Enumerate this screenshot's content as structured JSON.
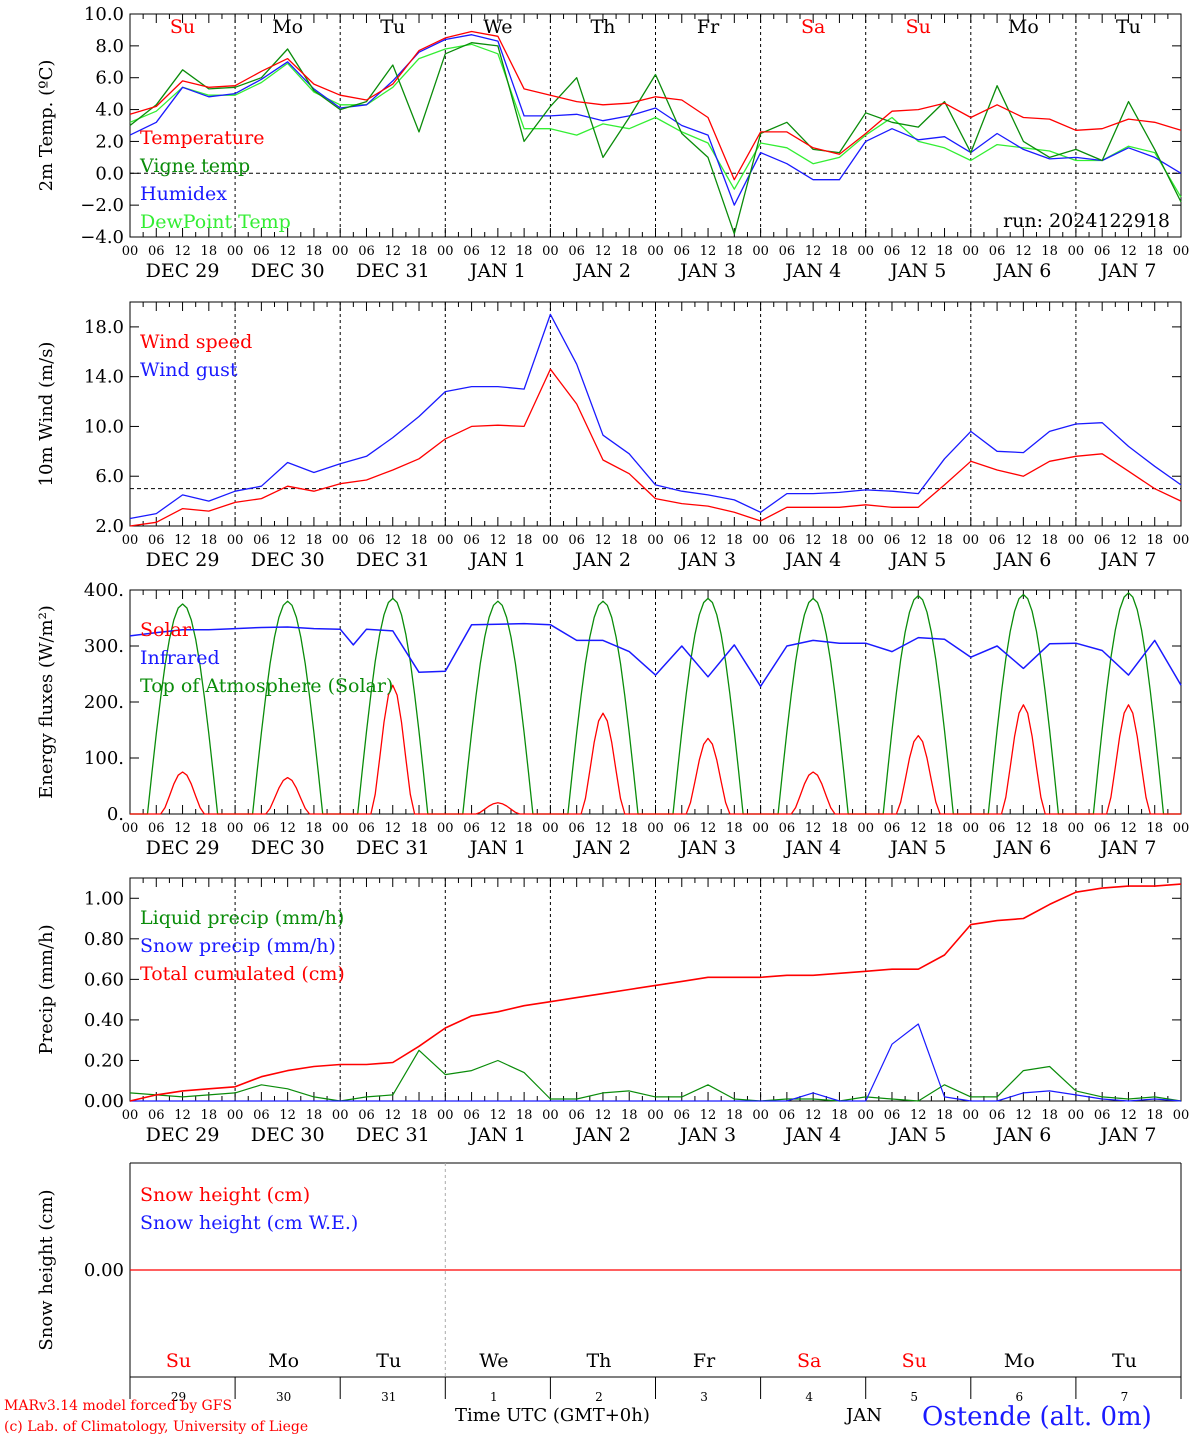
{
  "colors": {
    "red": "#ff0000",
    "green": "#0a8c0a",
    "blue": "#1a1aff",
    "lightgreen": "#33ee33",
    "grey": "#aaaaaa",
    "black": "#000000"
  },
  "day_labels": [
    "Su",
    "Mo",
    "Tu",
    "We",
    "Th",
    "Fr",
    "Sa",
    "Su",
    "Mo",
    "Tu"
  ],
  "weekend_flags": [
    true,
    false,
    false,
    false,
    false,
    false,
    true,
    true,
    false,
    false
  ],
  "date_labels": [
    "DEC 29",
    "DEC 30",
    "DEC 31",
    "JAN  1",
    "JAN  2",
    "JAN  3",
    "JAN  4",
    "JAN  5",
    "JAN  6",
    "JAN  7"
  ],
  "hour_labels": [
    "00",
    "06",
    "12",
    "18"
  ],
  "bottom_day_numbers": [
    "29",
    "30",
    "31",
    "1",
    "2",
    "3",
    "4",
    "5",
    "6",
    "7"
  ],
  "footer": {
    "credit_line1": "MARv3.14 model forced by GFS",
    "credit_line2": "(c) Lab. of Climatology, University of Liege",
    "xaxis_title": "Time UTC (GMT+0h)",
    "month": "JAN",
    "station": "Ostende (alt. 0m)"
  },
  "chart_data": [
    {
      "type": "line",
      "ylabel": "2m Temp. (ºC)",
      "ylim": [
        -4,
        10
      ],
      "yticks": [
        "10.0",
        "8.0",
        "6.0",
        "4.0",
        "2.0",
        "0.0",
        "−2.0",
        "−4.0"
      ],
      "annotation": "run: 2024122918",
      "x_hours": [
        0,
        6,
        12,
        18,
        24,
        30,
        36,
        42,
        48,
        54,
        60,
        66,
        72,
        78,
        84,
        90,
        96,
        102,
        108,
        114,
        120,
        126,
        132,
        138,
        144,
        150,
        156,
        162,
        168,
        174,
        180,
        186,
        192,
        198,
        204,
        210,
        216,
        222,
        228,
        234,
        240
      ],
      "series": [
        {
          "name": "Temperature",
          "color": "red",
          "values": [
            3.7,
            4.2,
            5.8,
            5.4,
            5.5,
            6.4,
            7.2,
            5.6,
            4.9,
            4.6,
            5.6,
            7.7,
            8.5,
            8.9,
            8.6,
            5.3,
            4.9,
            4.5,
            4.3,
            4.4,
            4.8,
            4.6,
            3.5,
            -0.4,
            2.6,
            2.6,
            1.6,
            1.2,
            2.5,
            3.9,
            4.0,
            4.4,
            3.5,
            4.3,
            3.5,
            3.4,
            2.7,
            2.8,
            3.4,
            3.2,
            2.7
          ]
        },
        {
          "name": "Vigne temp",
          "color": "green",
          "values": [
            3.0,
            4.3,
            6.5,
            5.3,
            5.4,
            6.0,
            7.8,
            5.2,
            4.0,
            4.5,
            6.8,
            2.6,
            7.5,
            8.2,
            8.0,
            2.0,
            4.2,
            6.0,
            1.0,
            3.5,
            6.2,
            2.5,
            1.0,
            -3.8,
            2.5,
            3.2,
            1.5,
            1.3,
            3.8,
            3.2,
            2.9,
            4.5,
            1.3,
            5.5,
            2.0,
            1.0,
            1.5,
            0.8,
            4.5,
            1.5,
            -1.8
          ]
        },
        {
          "name": "Humidex",
          "color": "blue",
          "values": [
            2.4,
            3.2,
            5.4,
            4.8,
            5.0,
            5.9,
            7.0,
            5.3,
            4.1,
            4.3,
            5.8,
            7.6,
            8.4,
            8.7,
            8.3,
            3.6,
            3.6,
            3.7,
            3.3,
            3.6,
            4.1,
            3.0,
            2.4,
            -2.0,
            1.3,
            0.6,
            -0.4,
            -0.4,
            2.0,
            2.8,
            2.1,
            2.3,
            1.3,
            2.5,
            1.5,
            0.9,
            1.0,
            0.8,
            1.6,
            1.0,
            0.0
          ]
        },
        {
          "name": "DewPoint Temp",
          "color": "lightgreen",
          "values": [
            3.2,
            3.9,
            5.4,
            4.9,
            4.9,
            5.7,
            6.9,
            5.1,
            4.3,
            4.3,
            5.4,
            7.2,
            7.8,
            8.1,
            7.5,
            2.8,
            2.8,
            2.4,
            3.1,
            2.8,
            3.5,
            2.6,
            1.9,
            -1.0,
            1.9,
            1.6,
            0.6,
            1.0,
            2.4,
            3.5,
            2.0,
            1.6,
            0.8,
            1.8,
            1.6,
            1.4,
            0.8,
            0.8,
            1.7,
            1.3,
            -1.5
          ]
        }
      ]
    },
    {
      "type": "line",
      "ylabel": "10m Wind (m/s)",
      "ylim": [
        2,
        20
      ],
      "yticks": [
        "18.0",
        "14.0",
        "10.0",
        "6.0",
        "2.0"
      ],
      "reference_line": 5,
      "x_hours": [
        0,
        6,
        12,
        18,
        24,
        30,
        36,
        42,
        48,
        54,
        60,
        66,
        72,
        78,
        84,
        90,
        96,
        102,
        108,
        114,
        120,
        126,
        132,
        138,
        144,
        150,
        156,
        162,
        168,
        174,
        180,
        186,
        192,
        198,
        204,
        210,
        216,
        222,
        228,
        234,
        240
      ],
      "series": [
        {
          "name": "Wind speed",
          "color": "red",
          "values": [
            2.0,
            2.3,
            3.4,
            3.2,
            3.9,
            4.2,
            5.2,
            4.8,
            5.4,
            5.7,
            6.5,
            7.4,
            9.0,
            10.0,
            10.1,
            10.0,
            14.6,
            11.8,
            7.3,
            6.2,
            4.2,
            3.8,
            3.6,
            3.1,
            2.4,
            3.5,
            3.5,
            3.5,
            3.7,
            3.5,
            3.5,
            5.3,
            7.2,
            6.5,
            6.0,
            7.2,
            7.6,
            7.8,
            6.4,
            5.0,
            4.0
          ]
        },
        {
          "name": "Wind gust",
          "color": "blue",
          "values": [
            2.6,
            3.0,
            4.5,
            4.0,
            4.8,
            5.2,
            7.1,
            6.3,
            7.0,
            7.6,
            9.1,
            10.8,
            12.8,
            13.2,
            13.2,
            13.0,
            19.0,
            15.0,
            9.3,
            7.8,
            5.3,
            4.8,
            4.5,
            4.1,
            3.1,
            4.6,
            4.6,
            4.7,
            4.9,
            4.8,
            4.6,
            7.4,
            9.6,
            8.0,
            7.9,
            9.6,
            10.2,
            10.3,
            8.4,
            6.8,
            5.3
          ]
        }
      ]
    },
    {
      "type": "line",
      "ylabel": "Energy fluxes (W/m²)",
      "ylim": [
        0,
        400
      ],
      "yticks": [
        "400.",
        "300.",
        "200.",
        "100.",
        "0."
      ],
      "solar_peak_hour": 12,
      "daily_peaks": {
        "Solar": [
          75,
          65,
          230,
          20,
          180,
          135,
          75,
          140,
          195,
          195
        ],
        "Top of Atmosphere (Solar)": [
          375,
          380,
          385,
          380,
          380,
          385,
          385,
          390,
          392,
          395
        ]
      },
      "series": [
        {
          "name": "Solar",
          "color": "red"
        },
        {
          "name": "Infrared",
          "color": "blue",
          "x_hours": [
            0,
            6,
            12,
            18,
            24,
            30,
            36,
            42,
            48,
            51,
            54,
            60,
            66,
            72,
            78,
            84,
            90,
            96,
            102,
            108,
            114,
            120,
            126,
            132,
            138,
            144,
            150,
            156,
            162,
            168,
            174,
            180,
            186,
            192,
            198,
            204,
            210,
            216,
            222,
            228,
            234,
            240
          ],
          "values": [
            318,
            324,
            329,
            329,
            331,
            333,
            334,
            331,
            330,
            302,
            330,
            327,
            253,
            255,
            338,
            339,
            340,
            338,
            310,
            310,
            290,
            248,
            300,
            245,
            302,
            228,
            300,
            310,
            305,
            305,
            290,
            315,
            312,
            280,
            300,
            260,
            304,
            305,
            292,
            248,
            310,
            230
          ]
        },
        {
          "name": "Top of Atmosphere (Solar)",
          "color": "green"
        }
      ]
    },
    {
      "type": "line",
      "ylabel": "Precip (mm/h)",
      "ylim": [
        0,
        1.1
      ],
      "yticks": [
        "1.00",
        "0.80",
        "0.60",
        "0.40",
        "0.20",
        "0.00"
      ],
      "x_hours": [
        0,
        6,
        12,
        18,
        24,
        30,
        36,
        42,
        48,
        54,
        60,
        66,
        72,
        78,
        84,
        90,
        96,
        102,
        108,
        114,
        120,
        126,
        132,
        138,
        144,
        150,
        156,
        162,
        168,
        174,
        180,
        186,
        192,
        198,
        204,
        210,
        216,
        222,
        228,
        234,
        240
      ],
      "series": [
        {
          "name": "Liquid precip (mm/h)",
          "color": "green",
          "values": [
            0.04,
            0.03,
            0.02,
            0.03,
            0.04,
            0.08,
            0.06,
            0.02,
            0.0,
            0.02,
            0.03,
            0.25,
            0.13,
            0.15,
            0.2,
            0.14,
            0.01,
            0.01,
            0.04,
            0.05,
            0.02,
            0.02,
            0.08,
            0.01,
            0.0,
            0.01,
            0.01,
            0.0,
            0.02,
            0.01,
            0.0,
            0.08,
            0.02,
            0.02,
            0.15,
            0.17,
            0.05,
            0.02,
            0.01,
            0.02,
            0.0
          ]
        },
        {
          "name": "Snow precip (mm/h)",
          "color": "blue",
          "values": [
            0,
            0,
            0,
            0,
            0,
            0,
            0,
            0,
            0,
            0,
            0,
            0,
            0,
            0,
            0,
            0,
            0,
            0,
            0,
            0,
            0,
            0,
            0,
            0,
            0,
            0,
            0.04,
            0.0,
            0.0,
            0.28,
            0.38,
            0.02,
            0.0,
            0.0,
            0.04,
            0.05,
            0.03,
            0.01,
            0.0,
            0.01,
            0.0
          ]
        },
        {
          "name": "Total cumulated (cm)",
          "color": "red",
          "values": [
            0.0,
            0.03,
            0.05,
            0.06,
            0.07,
            0.12,
            0.15,
            0.17,
            0.18,
            0.18,
            0.19,
            0.27,
            0.36,
            0.42,
            0.44,
            0.47,
            0.49,
            0.51,
            0.53,
            0.55,
            0.57,
            0.59,
            0.61,
            0.61,
            0.61,
            0.62,
            0.62,
            0.63,
            0.64,
            0.65,
            0.65,
            0.72,
            0.87,
            0.89,
            0.9,
            0.97,
            1.03,
            1.05,
            1.06,
            1.06,
            1.07
          ]
        }
      ]
    },
    {
      "type": "line",
      "ylabel": "Snow height (cm)",
      "yticks": [
        "0.00"
      ],
      "series": [
        {
          "name": "Snow height (cm)",
          "color": "red",
          "values": [
            0
          ]
        },
        {
          "name": "Snow height (cm W.E.)",
          "color": "blue",
          "values": [
            0
          ]
        }
      ]
    }
  ]
}
